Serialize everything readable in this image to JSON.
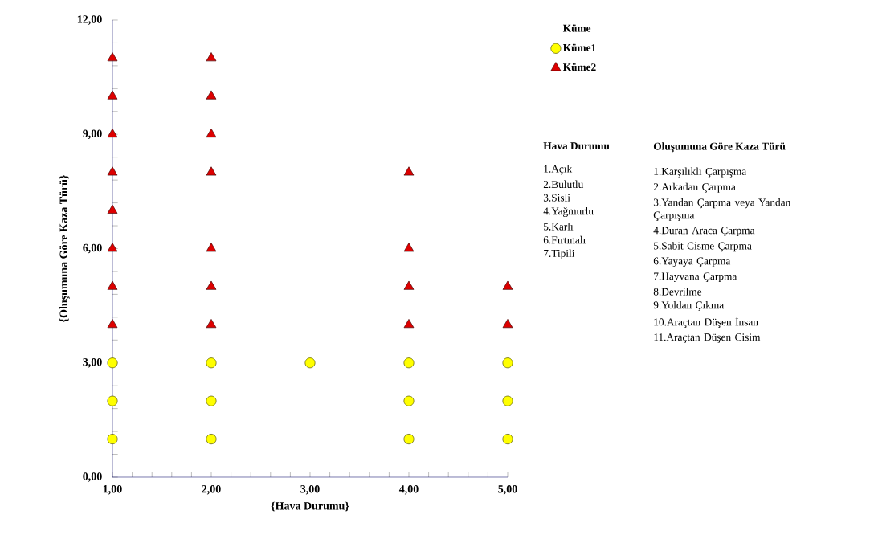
{
  "chart_data": {
    "type": "scatter",
    "xlabel": "{Hava Durumu}",
    "ylabel": "{Oluşumuna Göre Kaza Türü}",
    "legend_title": "Küme",
    "legend": "right",
    "grid": false,
    "xlim": [
      1,
      5
    ],
    "ylim": [
      0,
      12
    ],
    "xticks": [
      {
        "value": 1,
        "label": "1,00"
      },
      {
        "value": 2,
        "label": "2,00"
      },
      {
        "value": 3,
        "label": "3,00"
      },
      {
        "value": 4,
        "label": "4,00"
      },
      {
        "value": 5,
        "label": "5,00"
      }
    ],
    "yticks": [
      {
        "value": 0,
        "label": "0,00"
      },
      {
        "value": 3,
        "label": "3,00"
      },
      {
        "value": 6,
        "label": "6,00"
      },
      {
        "value": 9,
        "label": "9,00"
      },
      {
        "value": 12,
        "label": "12,00"
      }
    ],
    "series": [
      {
        "name": "Küme1",
        "color": "#ffff00",
        "marker": "circle",
        "x": [
          1,
          1,
          1,
          2,
          2,
          2,
          3,
          4,
          4,
          4,
          5,
          5,
          5
        ],
        "values": [
          1,
          2,
          3,
          1,
          2,
          3,
          3,
          1,
          2,
          3,
          1,
          2,
          3
        ]
      },
      {
        "name": "Küme2",
        "color": "#dd0000",
        "marker": "triangle",
        "x": [
          1,
          1,
          1,
          1,
          1,
          1,
          1,
          1,
          2,
          2,
          2,
          2,
          2,
          2,
          2,
          4,
          4,
          4,
          4,
          5,
          5
        ],
        "values": [
          4,
          5,
          6,
          7,
          8,
          9,
          10,
          11,
          4,
          5,
          6,
          8,
          9,
          10,
          11,
          4,
          5,
          6,
          8,
          4,
          5
        ]
      }
    ],
    "annotations": [
      "Hava Durumu",
      "1.Açık",
      "2.Bulutlu",
      "3.Sisli",
      "4.Yağmurlu",
      "5.Karlı",
      "6.Fırtınalı",
      "7.Tipili",
      "Oluşumuna Göre Kaza Türü",
      "1.Karşılıklı Çarpışma",
      "2.Arkadan Çarpma",
      "3.Yandan Çarpma veya Yandan Çarpışma",
      "4.Duran Araca Çarpma",
      "5.Sabit Cisme Çarpma",
      "6.Yayaya Çarpma",
      "7.Hayvana Çarpma",
      "8.Devrilme",
      "9.Yoldan Çıkma",
      "10.Araçtan Düşen İnsan",
      "11.Araçtan Düşen Cisim"
    ]
  }
}
